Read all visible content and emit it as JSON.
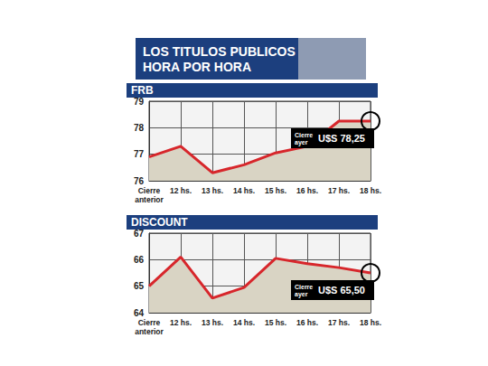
{
  "header": {
    "title": "LOS TITULOS PUBLICOS HORA POR HORA"
  },
  "chart_data": [
    {
      "type": "line",
      "title": "FRB",
      "categories": [
        "Cierre anterior",
        "12 hs.",
        "13 hs.",
        "14 hs.",
        "15 hs.",
        "16 hs.",
        "17 hs.",
        "18 hs."
      ],
      "values": [
        76.9,
        77.3,
        76.3,
        76.6,
        77.05,
        77.3,
        78.25,
        78.25
      ],
      "color": "#d7262b",
      "ylim": [
        76,
        79
      ],
      "yticks": [
        76,
        77,
        78,
        79
      ],
      "grid": true,
      "annotations": [
        "Cierre ayer",
        "U$S 78,25"
      ]
    },
    {
      "type": "line",
      "title": "DISCOUNT",
      "categories": [
        "Cierre anterior",
        "12 hs.",
        "13 hs.",
        "14 hs.",
        "15 hs.",
        "16 hs.",
        "17 hs.",
        "18 hs."
      ],
      "values": [
        65.0,
        66.1,
        64.55,
        64.95,
        66.05,
        65.85,
        65.7,
        65.5
      ],
      "color": "#d7262b",
      "ylim": [
        64,
        67
      ],
      "yticks": [
        64,
        65,
        66,
        67
      ],
      "grid": true,
      "annotations": [
        "Cierre ayer",
        "U$S 65,50"
      ]
    }
  ]
}
